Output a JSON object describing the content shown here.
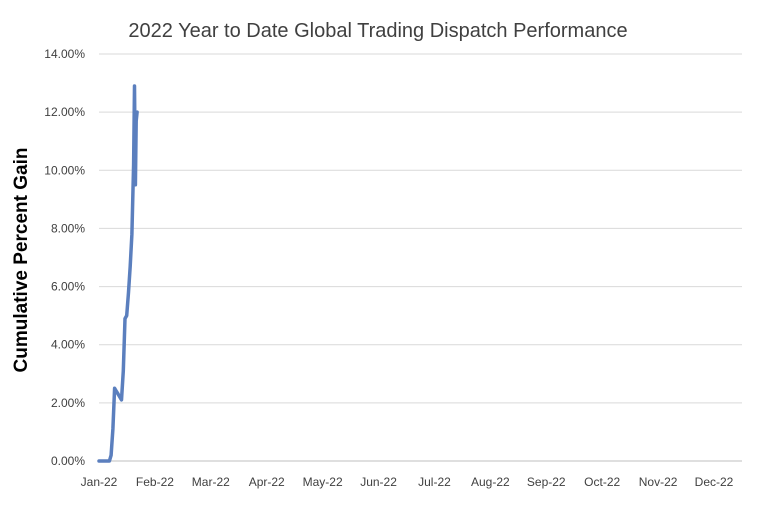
{
  "chart_data": {
    "type": "line",
    "title": "2022 Year to Date Global Trading Dispatch Performance",
    "xlabel": "",
    "ylabel": "Cumulative Percent Gain",
    "ylim": [
      0,
      0.14
    ],
    "y_ticks": [
      0,
      0.02,
      0.04,
      0.06,
      0.08,
      0.1,
      0.12,
      0.14
    ],
    "y_tick_labels": [
      "0.00%",
      "2.00%",
      "4.00%",
      "6.00%",
      "8.00%",
      "10.00%",
      "12.00%",
      "14.00%"
    ],
    "x_tick_labels": [
      "Jan-22",
      "Feb-22",
      "Mar-22",
      "Apr-22",
      "May-22",
      "Jun-22",
      "Jul-22",
      "Aug-22",
      "Sep-22",
      "Oct-22",
      "Nov-22",
      "Dec-22"
    ],
    "xlim_days": [
      0,
      355
    ],
    "grid": true,
    "legend": "none",
    "series": [
      {
        "name": "Cumulative Percent Gain",
        "color": "#5b7fbe",
        "x_days": [
          0,
          6,
          7,
          8,
          9,
          10,
          11,
          13,
          14,
          15,
          16,
          17,
          18,
          19,
          20,
          20.5,
          21,
          21.5,
          22
        ],
        "values": [
          0,
          0,
          0.002,
          0.011,
          0.025,
          0.024,
          0.023,
          0.021,
          0.031,
          0.049,
          0.05,
          0.058,
          0.067,
          0.078,
          0.102,
          0.129,
          0.095,
          0.117,
          0.12
        ]
      }
    ]
  }
}
